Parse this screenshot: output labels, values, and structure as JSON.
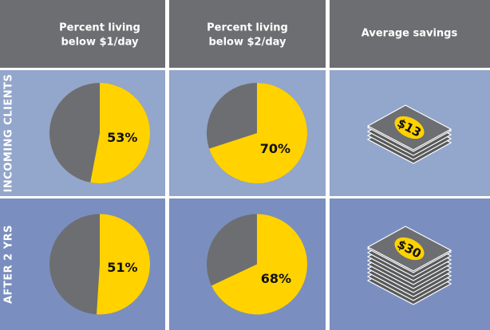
{
  "table": {
    "headers": [
      [
        "Percent living",
        "below $1/day"
      ],
      [
        "Percent living",
        "below $2/day"
      ],
      [
        "Average savings"
      ]
    ],
    "rows": [
      {
        "label": "INCOMING CLIENTS",
        "pies": [
          {
            "value": 53,
            "label": "53%"
          },
          {
            "value": 70,
            "label": "70%"
          }
        ],
        "savings": {
          "value": 13,
          "label": "$13"
        }
      },
      {
        "label": "AFTER 2 YRS",
        "pies": [
          {
            "value": 51,
            "label": "51%"
          },
          {
            "value": 68,
            "label": "68%"
          }
        ],
        "savings": {
          "value": 30,
          "label": "$30"
        }
      }
    ],
    "colors": {
      "share": "#ffd200",
      "rest": "#6d6e71"
    }
  }
}
